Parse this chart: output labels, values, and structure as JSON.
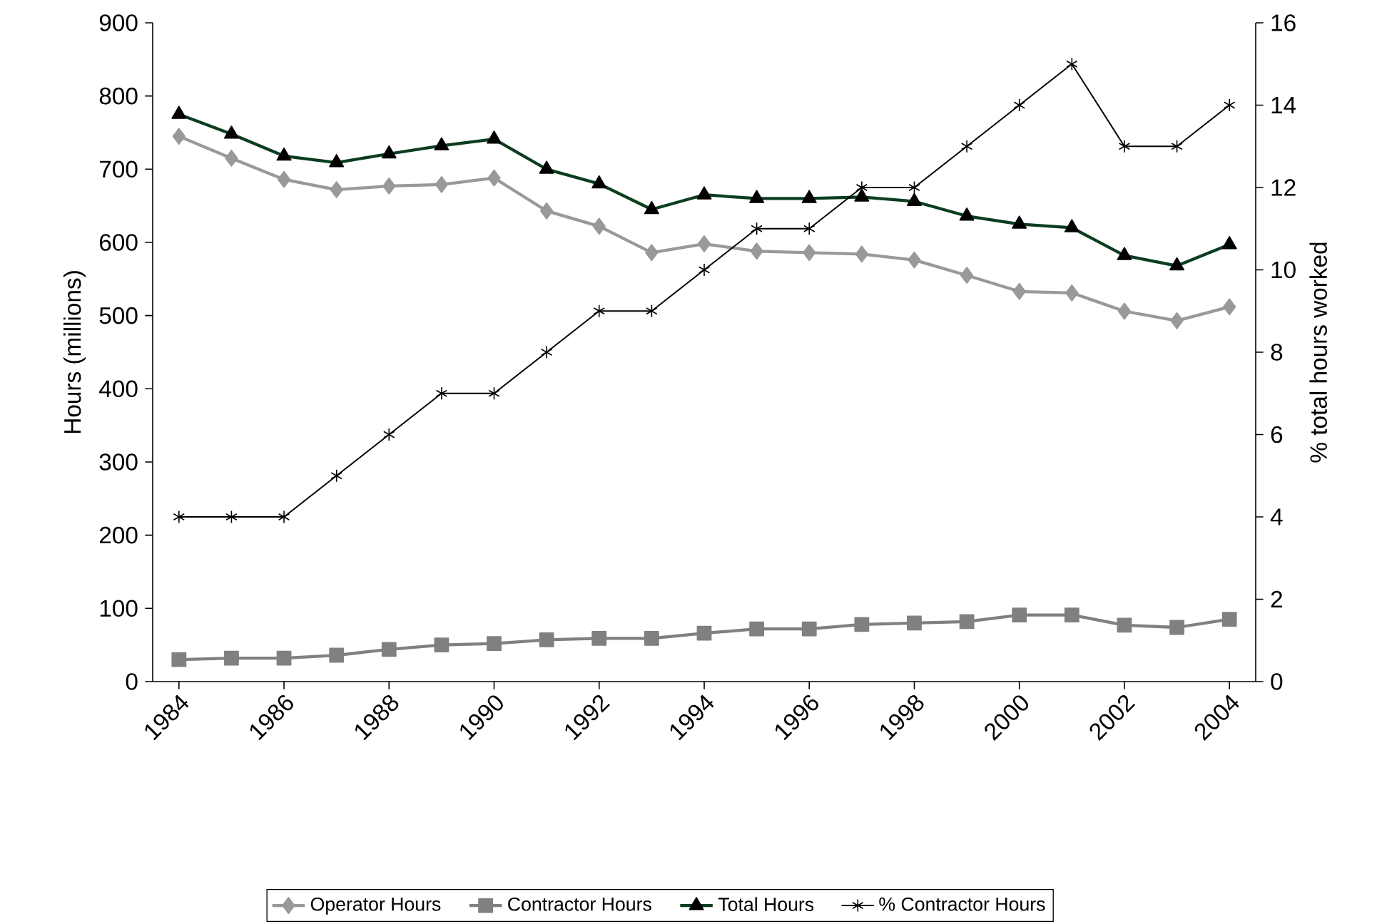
{
  "chart_data": {
    "type": "line",
    "categories": [
      "1984",
      null,
      "1986",
      null,
      "1988",
      null,
      "1990",
      null,
      "1992",
      null,
      "1994",
      null,
      "1996",
      null,
      "1998",
      null,
      "2000",
      null,
      "2002",
      null,
      "2004"
    ],
    "ylabel": "Hours (millions)",
    "y2label": "% total hours worked",
    "ylim": [
      0,
      900
    ],
    "yticks": [
      0,
      100,
      200,
      300,
      400,
      500,
      600,
      700,
      800,
      900
    ],
    "y2lim": [
      0,
      16
    ],
    "y2ticks": [
      0,
      2,
      4,
      6,
      8,
      10,
      12,
      14,
      16
    ],
    "legend": "bottom",
    "grid": false,
    "series": [
      {
        "name": "Operator Hours",
        "color": "#999999",
        "marker": "diamond",
        "values": [
          745,
          715,
          686,
          672,
          677,
          679,
          688,
          643,
          622,
          586,
          598,
          588,
          586,
          584,
          576,
          555,
          533,
          531,
          506,
          493,
          512
        ]
      },
      {
        "name": "Contractor Hours",
        "color": "#808080",
        "marker": "square",
        "values": [
          30,
          32,
          32,
          36,
          44,
          50,
          52,
          57,
          59,
          59,
          66,
          72,
          72,
          78,
          80,
          82,
          91,
          91,
          77,
          74,
          85
        ]
      },
      {
        "name": "Total Hours",
        "color": "#0b3d1f",
        "marker": "triangle",
        "values": [
          775,
          748,
          718,
          709,
          721,
          732,
          741,
          700,
          680,
          645,
          665,
          660,
          660,
          662,
          656,
          636,
          625,
          620,
          582,
          568,
          597
        ]
      },
      {
        "name": "% Contractor Hours",
        "color": "#000000",
        "marker": "cross",
        "axis": "y2",
        "values": [
          4,
          4,
          4,
          5,
          6,
          7,
          7,
          8,
          9,
          9,
          10,
          11,
          11,
          12,
          12,
          13,
          14,
          15,
          13,
          13,
          14
        ]
      }
    ]
  }
}
